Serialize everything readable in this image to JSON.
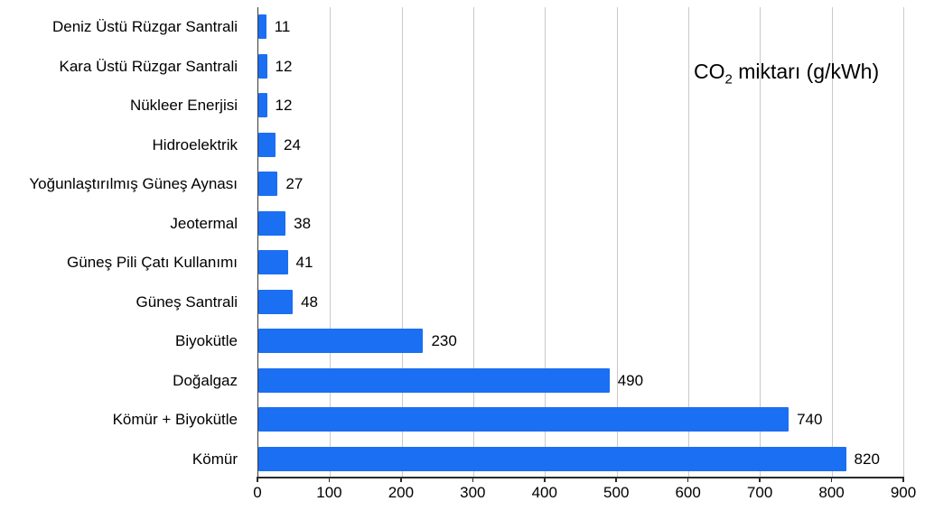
{
  "legend": {
    "prefix": "CO",
    "sub": "2",
    "suffix": " miktarı (g/kWh)"
  },
  "chart_data": {
    "type": "bar",
    "orientation": "horizontal",
    "title": "CO2 miktarı (g/kWh)",
    "categories": [
      "Deniz Üstü Rüzgar Santrali",
      "Kara Üstü Rüzgar Santrali",
      "Nükleer Enerjisi",
      "Hidroelektrik",
      "Yoğunlaştırılmış Güneş Aynası",
      "Jeotermal",
      "Güneş Pili Çatı Kullanımı",
      "Güneş Santrali",
      "Biyokütle",
      "Doğalgaz",
      "Kömür + Biyokütle",
      "Kömür"
    ],
    "values": [
      11,
      12,
      12,
      24,
      27,
      38,
      41,
      48,
      230,
      490,
      740,
      820
    ],
    "xlabel": "",
    "ylabel": "",
    "xlim": [
      0,
      900
    ],
    "xticks": [
      0,
      100,
      200,
      300,
      400,
      500,
      600,
      700,
      800,
      900
    ],
    "grid": true,
    "bar_color": "#1b6ff2",
    "grid_color": "#c9c9c9",
    "legend_position": "top-right"
  }
}
